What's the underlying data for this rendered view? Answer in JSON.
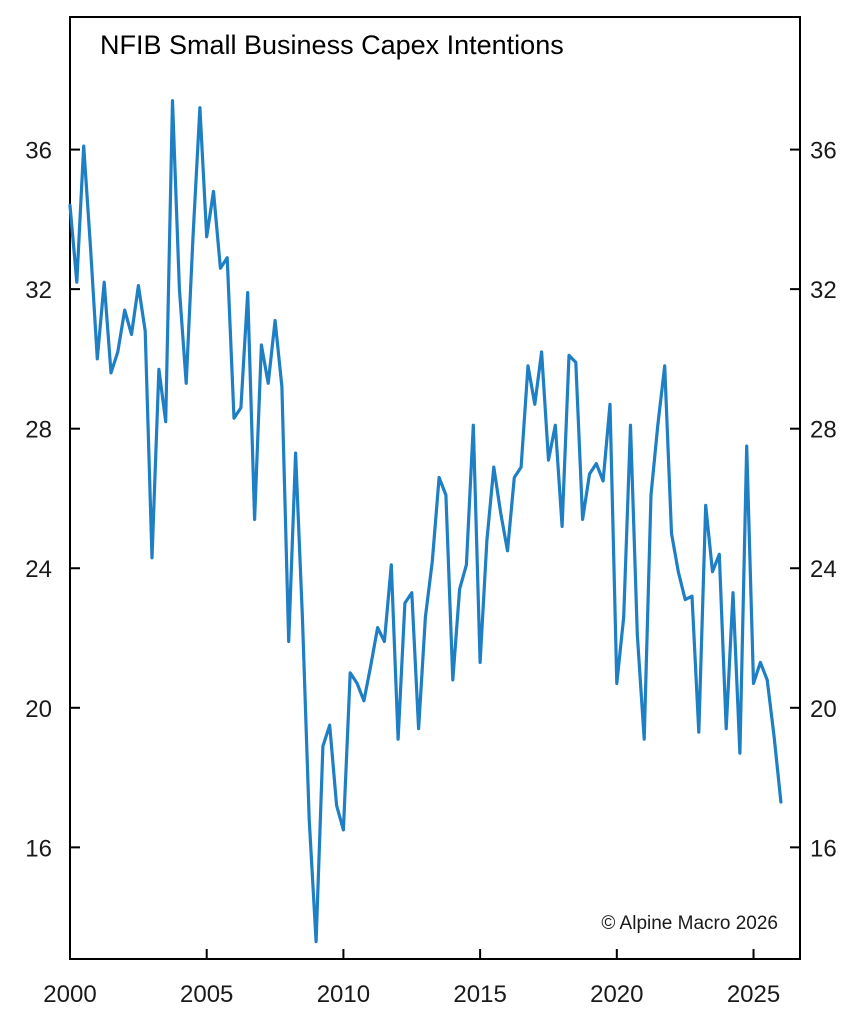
{
  "chart_data": {
    "type": "line",
    "title": "NFIB Small Business Capex Intentions",
    "copyright": "© Alpine Macro 2026",
    "xlabel": "",
    "ylabel": "",
    "xlim": [
      2000,
      2026.7
    ],
    "ylim": [
      12.8,
      39.8
    ],
    "x_ticks": [
      "2000",
      "2005",
      "2010",
      "2015",
      "2020",
      "2025"
    ],
    "y_ticks": [
      "16",
      "20",
      "24",
      "28",
      "32",
      "36"
    ],
    "y_ticks_right": [
      "16",
      "20",
      "24",
      "28",
      "32",
      "36"
    ],
    "grid": false,
    "line_color": "#1f7fc4",
    "series": [
      {
        "values": [
          [
            2000.0,
            34.4
          ],
          [
            2000.25,
            32.2
          ],
          [
            2000.5,
            36.1
          ],
          [
            2000.75,
            33.2
          ],
          [
            2001.0,
            30.0
          ],
          [
            2001.25,
            32.2
          ],
          [
            2001.5,
            29.6
          ],
          [
            2001.75,
            30.2
          ],
          [
            2002.0,
            31.4
          ],
          [
            2002.25,
            30.7
          ],
          [
            2002.5,
            32.1
          ],
          [
            2002.75,
            30.8
          ],
          [
            2003.0,
            24.3
          ],
          [
            2003.25,
            29.7
          ],
          [
            2003.5,
            28.2
          ],
          [
            2003.75,
            37.4
          ],
          [
            2004.0,
            32.0
          ],
          [
            2004.25,
            29.3
          ],
          [
            2004.5,
            33.5
          ],
          [
            2004.75,
            37.2
          ],
          [
            2005.0,
            33.5
          ],
          [
            2005.25,
            34.8
          ],
          [
            2005.5,
            32.6
          ],
          [
            2005.75,
            32.9
          ],
          [
            2006.0,
            28.3
          ],
          [
            2006.25,
            28.6
          ],
          [
            2006.5,
            31.9
          ],
          [
            2006.75,
            25.4
          ],
          [
            2007.0,
            30.4
          ],
          [
            2007.25,
            29.3
          ],
          [
            2007.5,
            31.1
          ],
          [
            2007.75,
            29.2
          ],
          [
            2008.0,
            21.9
          ],
          [
            2008.25,
            27.3
          ],
          [
            2008.5,
            22.6
          ],
          [
            2008.75,
            16.8
          ],
          [
            2009.0,
            13.3
          ],
          [
            2009.25,
            18.9
          ],
          [
            2009.5,
            19.5
          ],
          [
            2009.75,
            17.2
          ],
          [
            2010.0,
            16.5
          ],
          [
            2010.25,
            21.0
          ],
          [
            2010.5,
            20.7
          ],
          [
            2010.75,
            20.2
          ],
          [
            2011.0,
            21.2
          ],
          [
            2011.25,
            22.3
          ],
          [
            2011.5,
            21.9
          ],
          [
            2011.75,
            24.1
          ],
          [
            2012.0,
            19.1
          ],
          [
            2012.25,
            23.0
          ],
          [
            2012.5,
            23.3
          ],
          [
            2012.75,
            19.4
          ],
          [
            2013.0,
            22.6
          ],
          [
            2013.25,
            24.2
          ],
          [
            2013.5,
            26.6
          ],
          [
            2013.75,
            26.1
          ],
          [
            2014.0,
            20.8
          ],
          [
            2014.25,
            23.4
          ],
          [
            2014.5,
            24.1
          ],
          [
            2014.75,
            28.1
          ],
          [
            2015.0,
            21.3
          ],
          [
            2015.25,
            24.8
          ],
          [
            2015.5,
            26.9
          ],
          [
            2015.75,
            25.6
          ],
          [
            2016.0,
            24.5
          ],
          [
            2016.25,
            26.6
          ],
          [
            2016.5,
            26.9
          ],
          [
            2016.75,
            29.8
          ],
          [
            2017.0,
            28.7
          ],
          [
            2017.25,
            30.2
          ],
          [
            2017.5,
            27.1
          ],
          [
            2017.75,
            28.1
          ],
          [
            2018.0,
            25.2
          ],
          [
            2018.25,
            30.1
          ],
          [
            2018.5,
            29.9
          ],
          [
            2018.75,
            25.4
          ],
          [
            2019.0,
            26.7
          ],
          [
            2019.25,
            27.0
          ],
          [
            2019.5,
            26.5
          ],
          [
            2019.75,
            28.7
          ],
          [
            2020.0,
            20.7
          ],
          [
            2020.25,
            22.6
          ],
          [
            2020.5,
            28.1
          ],
          [
            2020.75,
            22.1
          ],
          [
            2021.0,
            19.1
          ],
          [
            2021.25,
            26.1
          ],
          [
            2021.5,
            28.1
          ],
          [
            2021.75,
            29.8
          ],
          [
            2022.0,
            25.0
          ],
          [
            2022.25,
            23.9
          ],
          [
            2022.5,
            23.1
          ],
          [
            2022.75,
            23.2
          ],
          [
            2023.0,
            19.3
          ],
          [
            2023.25,
            25.8
          ],
          [
            2023.5,
            23.9
          ],
          [
            2023.75,
            24.4
          ],
          [
            2024.0,
            19.4
          ],
          [
            2024.25,
            23.3
          ],
          [
            2024.5,
            18.7
          ],
          [
            2024.75,
            27.5
          ],
          [
            2025.0,
            20.7
          ],
          [
            2025.25,
            21.3
          ],
          [
            2025.5,
            20.8
          ],
          [
            2025.75,
            19.2
          ],
          [
            2026.0,
            17.3
          ]
        ]
      }
    ]
  }
}
